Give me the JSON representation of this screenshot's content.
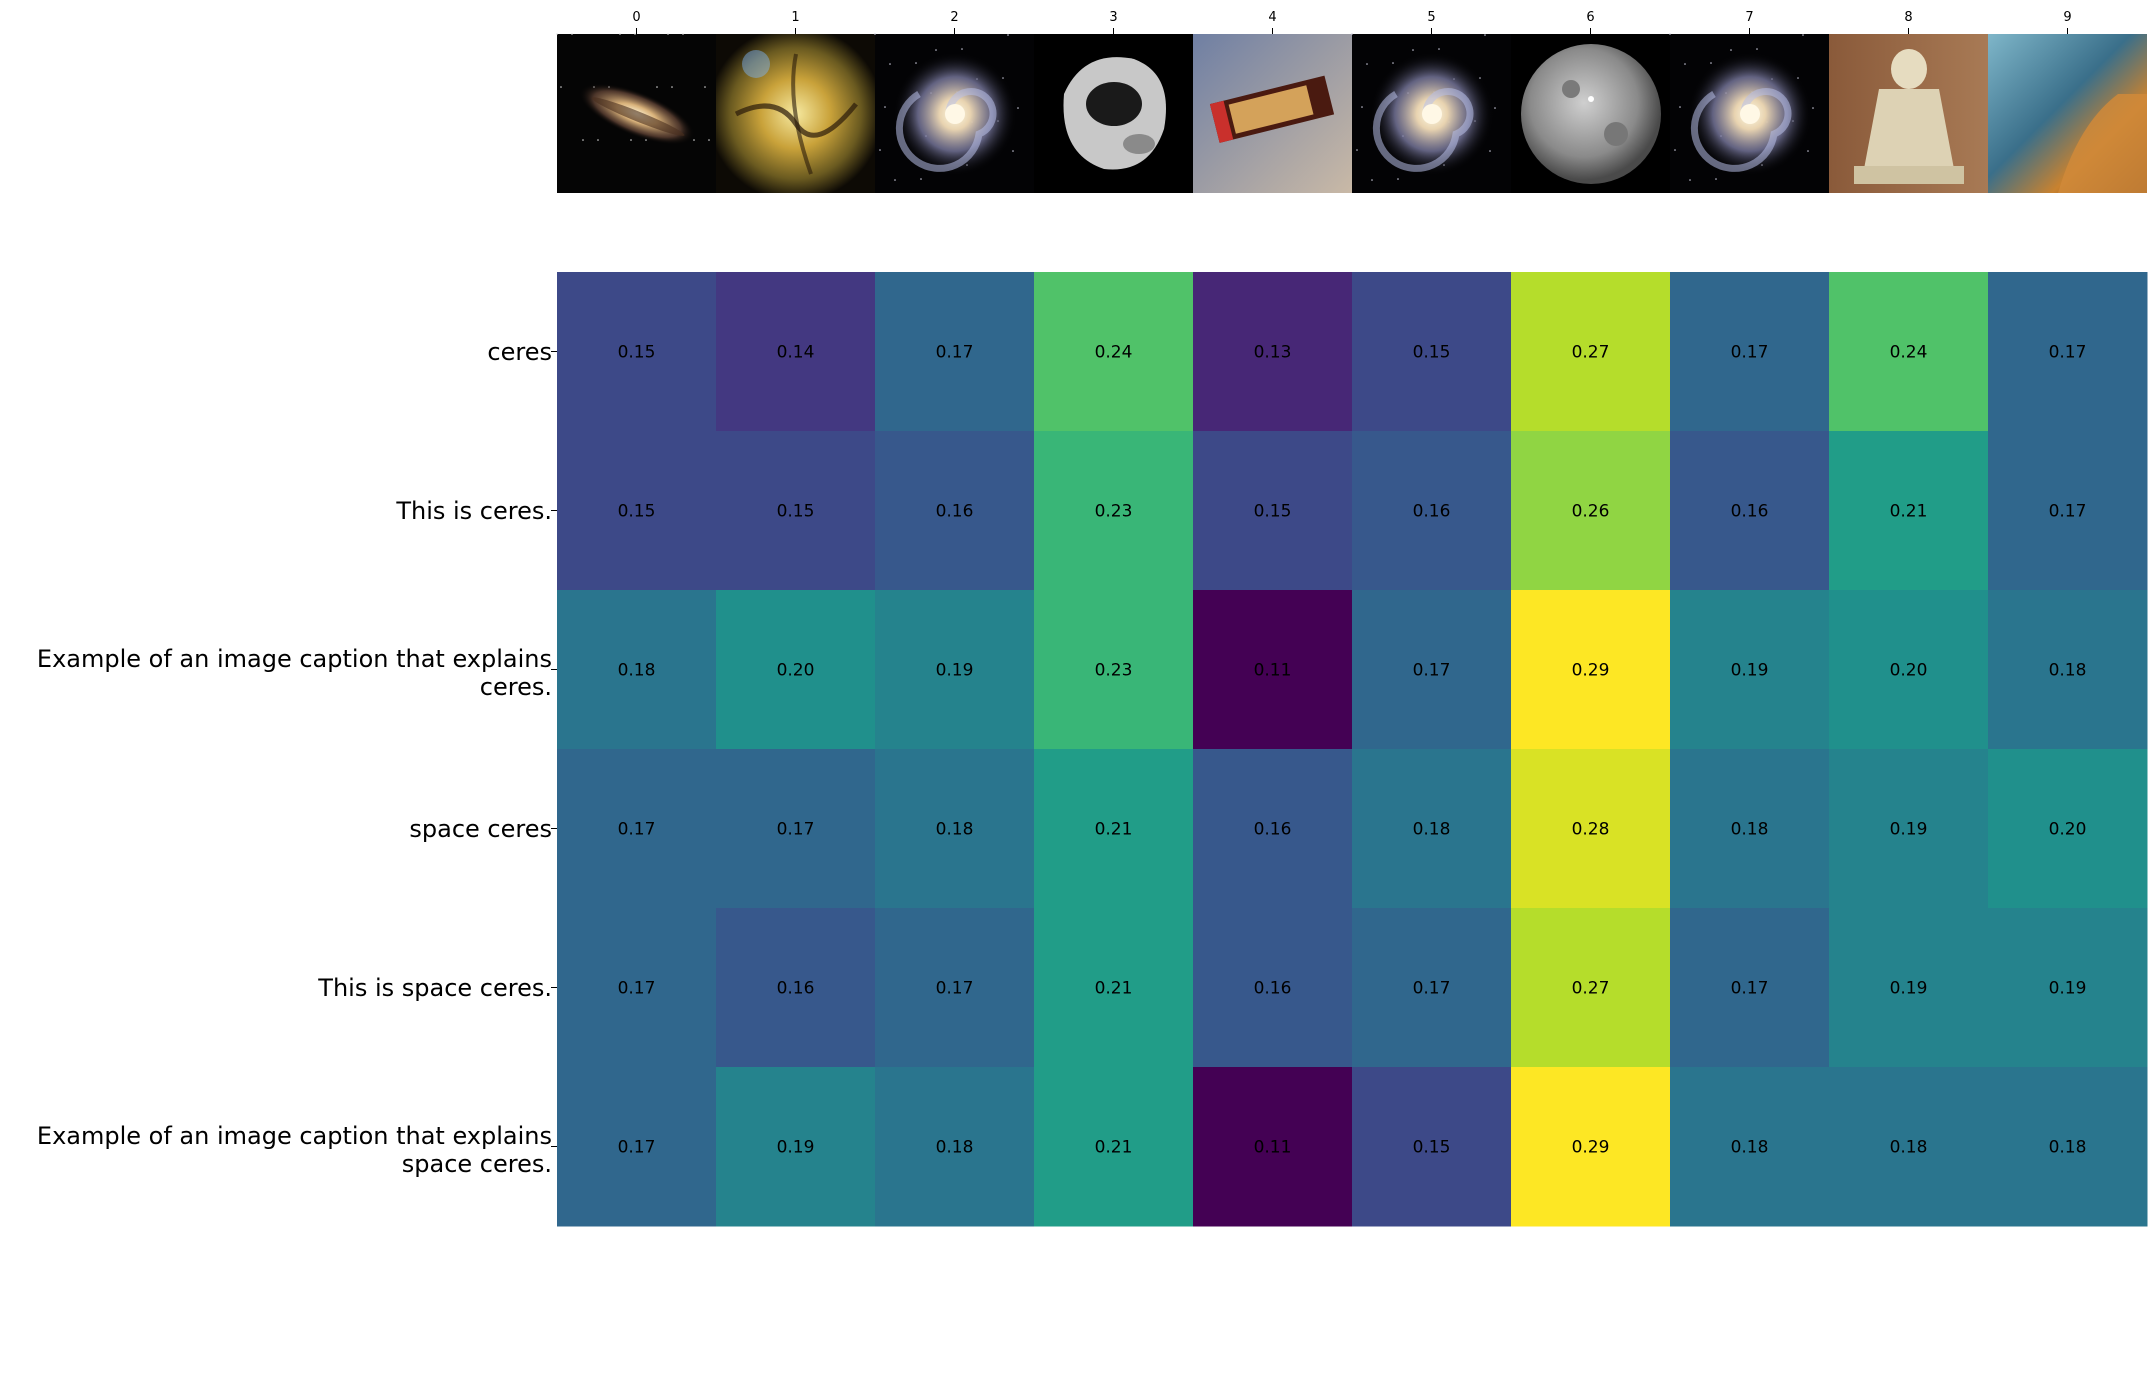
{
  "chart_data": {
    "type": "heatmap",
    "colormap": "viridis",
    "value_range": [
      0.11,
      0.29
    ],
    "columns": [
      "0",
      "1",
      "2",
      "3",
      "4",
      "5",
      "6",
      "7",
      "8",
      "9"
    ],
    "column_thumbnails": [
      "edge-on-galaxy",
      "nebula",
      "spiral-galaxy",
      "asteroid",
      "galaxy-chocolate-bar",
      "spiral-galaxy",
      "ceres-dwarf-planet",
      "spiral-galaxy",
      "stone-statue",
      "nebula"
    ],
    "rows": [
      "ceres",
      "This is ceres.",
      "Example of an image caption that explains ceres.",
      "space ceres",
      "This is space ceres.",
      "Example of an image caption that explains space ceres."
    ],
    "row_label_lines": [
      [
        "ceres"
      ],
      [
        "This is ceres."
      ],
      [
        "Example of an image caption that explains",
        "ceres."
      ],
      [
        "space ceres"
      ],
      [
        "This is space ceres."
      ],
      [
        "Example of an image caption that explains",
        "space ceres."
      ]
    ],
    "values": [
      [
        0.15,
        0.14,
        0.17,
        0.24,
        0.13,
        0.15,
        0.27,
        0.17,
        0.24,
        0.17
      ],
      [
        0.15,
        0.15,
        0.16,
        0.23,
        0.15,
        0.16,
        0.26,
        0.16,
        0.21,
        0.17
      ],
      [
        0.18,
        0.2,
        0.19,
        0.23,
        0.11,
        0.17,
        0.29,
        0.19,
        0.2,
        0.18
      ],
      [
        0.17,
        0.17,
        0.18,
        0.21,
        0.16,
        0.18,
        0.28,
        0.18,
        0.19,
        0.2
      ],
      [
        0.17,
        0.16,
        0.17,
        0.21,
        0.16,
        0.17,
        0.27,
        0.17,
        0.19,
        0.19
      ],
      [
        0.17,
        0.19,
        0.18,
        0.21,
        0.11,
        0.15,
        0.29,
        0.18,
        0.18,
        0.18
      ]
    ]
  }
}
